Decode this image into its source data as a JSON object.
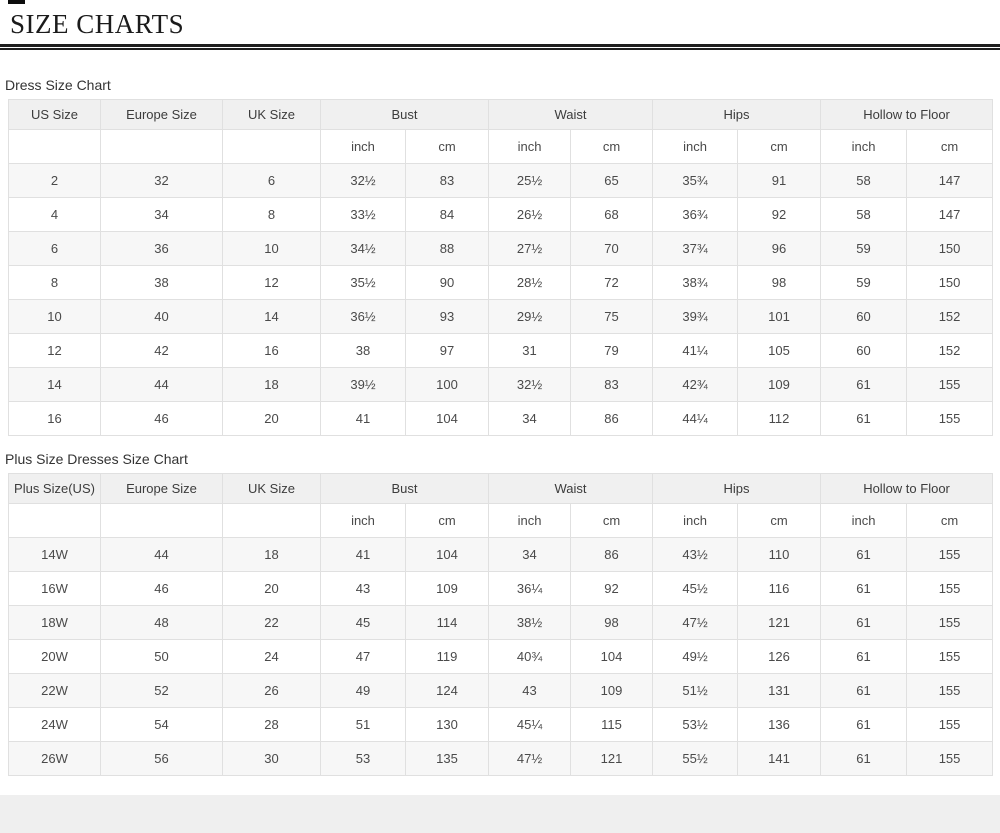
{
  "page": {
    "title": "SIZE CHARTS"
  },
  "colors": {
    "header_bg": "#f0f0f0",
    "row_alt_bg": "#f7f7f7",
    "border": "#e0e0e0",
    "text": "#4a4a4a",
    "title_text": "#1b1b1b",
    "footer_strip": "#efefef"
  },
  "dress_chart": {
    "caption": "Dress Size Chart",
    "headers": [
      "US Size",
      "Europe Size",
      "UK Size",
      "Bust",
      "Waist",
      "Hips",
      "Hollow to Floor"
    ],
    "units": [
      "inch",
      "cm",
      "inch",
      "cm",
      "inch",
      "cm",
      "inch",
      "cm"
    ],
    "rows": [
      [
        "2",
        "32",
        "6",
        "32½",
        "83",
        "25½",
        "65",
        "35¾",
        "91",
        "58",
        "147"
      ],
      [
        "4",
        "34",
        "8",
        "33½",
        "84",
        "26½",
        "68",
        "36¾",
        "92",
        "58",
        "147"
      ],
      [
        "6",
        "36",
        "10",
        "34½",
        "88",
        "27½",
        "70",
        "37¾",
        "96",
        "59",
        "150"
      ],
      [
        "8",
        "38",
        "12",
        "35½",
        "90",
        "28½",
        "72",
        "38¾",
        "98",
        "59",
        "150"
      ],
      [
        "10",
        "40",
        "14",
        "36½",
        "93",
        "29½",
        "75",
        "39¾",
        "101",
        "60",
        "152"
      ],
      [
        "12",
        "42",
        "16",
        "38",
        "97",
        "31",
        "79",
        "41¼",
        "105",
        "60",
        "152"
      ],
      [
        "14",
        "44",
        "18",
        "39½",
        "100",
        "32½",
        "83",
        "42¾",
        "109",
        "61",
        "155"
      ],
      [
        "16",
        "46",
        "20",
        "41",
        "104",
        "34",
        "86",
        "44¼",
        "112",
        "61",
        "155"
      ]
    ]
  },
  "plus_chart": {
    "caption": "Plus Size Dresses Size Chart",
    "headers": [
      "Plus Size(US)",
      "Europe Size",
      "UK Size",
      "Bust",
      "Waist",
      "Hips",
      "Hollow to Floor"
    ],
    "units": [
      "inch",
      "cm",
      "inch",
      "cm",
      "inch",
      "cm",
      "inch",
      "cm"
    ],
    "rows": [
      [
        "14W",
        "44",
        "18",
        "41",
        "104",
        "34",
        "86",
        "43½",
        "110",
        "61",
        "155"
      ],
      [
        "16W",
        "46",
        "20",
        "43",
        "109",
        "36¼",
        "92",
        "45½",
        "116",
        "61",
        "155"
      ],
      [
        "18W",
        "48",
        "22",
        "45",
        "114",
        "38½",
        "98",
        "47½",
        "121",
        "61",
        "155"
      ],
      [
        "20W",
        "50",
        "24",
        "47",
        "119",
        "40¾",
        "104",
        "49½",
        "126",
        "61",
        "155"
      ],
      [
        "22W",
        "52",
        "26",
        "49",
        "124",
        "43",
        "109",
        "51½",
        "131",
        "61",
        "155"
      ],
      [
        "24W",
        "54",
        "28",
        "51",
        "130",
        "45¼",
        "115",
        "53½",
        "136",
        "61",
        "155"
      ],
      [
        "26W",
        "56",
        "30",
        "53",
        "135",
        "47½",
        "121",
        "55½",
        "141",
        "61",
        "155"
      ]
    ]
  }
}
